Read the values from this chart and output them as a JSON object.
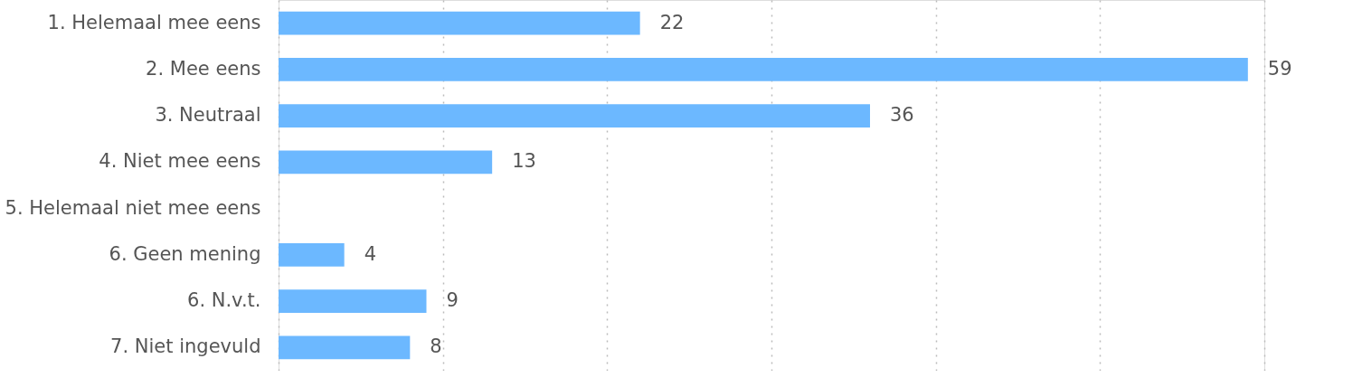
{
  "chart_data": {
    "type": "bar",
    "orientation": "horizontal",
    "categories": [
      "1. Helemaal mee eens",
      "2. Mee eens",
      "3. Neutraal",
      "4. Niet mee eens",
      "5. Helemaal niet mee eens",
      "6. Geen mening",
      "6. N.v.t.",
      "7. Niet ingevuld"
    ],
    "values": [
      22,
      59,
      36,
      13,
      0,
      4,
      9,
      8
    ],
    "value_labels": [
      "22",
      "59",
      "36",
      "13",
      null,
      "4",
      "9",
      "8"
    ],
    "color": "#6cb8ff",
    "xlim": [
      0,
      60
    ],
    "xticks": [
      {
        "value": 0,
        "label": null
      },
      {
        "value": 10,
        "label": null
      },
      {
        "value": 20,
        "label": null
      },
      {
        "value": 30,
        "label": null
      },
      {
        "value": 40,
        "label": null
      },
      {
        "value": 50,
        "label": null
      },
      {
        "value": 60,
        "label": null
      }
    ],
    "tick_labels": "y",
    "grid": "x"
  }
}
